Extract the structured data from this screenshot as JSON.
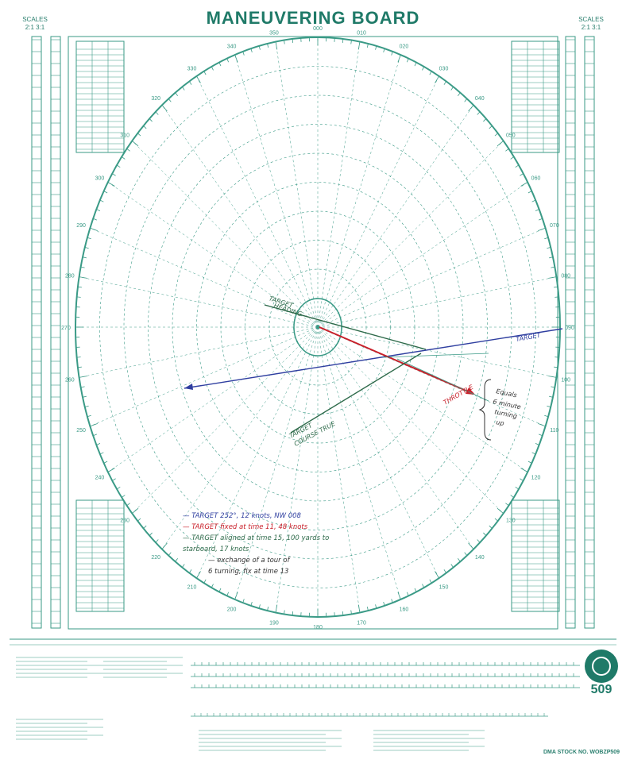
{
  "title": "MANEUVERING BOARD",
  "scale_left": "SCALES",
  "scale_left_ratio": "2:1  3:1",
  "scale_right": "SCALES",
  "scale_right_ratio": "2:1  3:1",
  "board_number": "509",
  "stock_no": "DMA STOCK NO. WOBZP509",
  "bearings_outer": [
    "000",
    "010",
    "020",
    "030",
    "040",
    "050",
    "060",
    "070",
    "080",
    "090",
    "100",
    "110",
    "120",
    "130",
    "140",
    "150",
    "160",
    "170",
    "180",
    "190",
    "200",
    "210",
    "220",
    "230",
    "240",
    "250",
    "260",
    "270",
    "280",
    "290",
    "300",
    "310",
    "320",
    "330",
    "340",
    "350"
  ],
  "annotations": {
    "ge_top": "TARGET",
    "ge_top2": "HEADING",
    "ge_bottom": "TARGET",
    "ge_bottom2": "COURSE TRUE",
    "red_label": "THROTTLE",
    "blue_label": "TARGET",
    "brace_note_1": "Equals",
    "brace_note_2": "6 minute",
    "brace_note_3": "turning",
    "brace_note_4": "up"
  },
  "legend": [
    {
      "text": "— TARGET 252°, 12 knots, NW 008",
      "color": "#2f3fa0"
    },
    {
      "text": "— TARGET fixed at time 11, 48 knots",
      "color": "#c9202a"
    },
    {
      "text": "— TARGET aligned at time 15, 100 yards to",
      "color": "#2e6a4a"
    },
    {
      "text": "starboard, 17 knots",
      "color": "#2e6a4a"
    },
    {
      "text": "— exchange of a tour of",
      "color": "#333333"
    },
    {
      "text": "6 turning, fix at time 13",
      "color": "#333333"
    }
  ],
  "colors": {
    "grid": "#3a9a86",
    "blue": "#2f3fa0",
    "red": "#c9202a",
    "green": "#2e6a4a",
    "ink": "#333333"
  }
}
